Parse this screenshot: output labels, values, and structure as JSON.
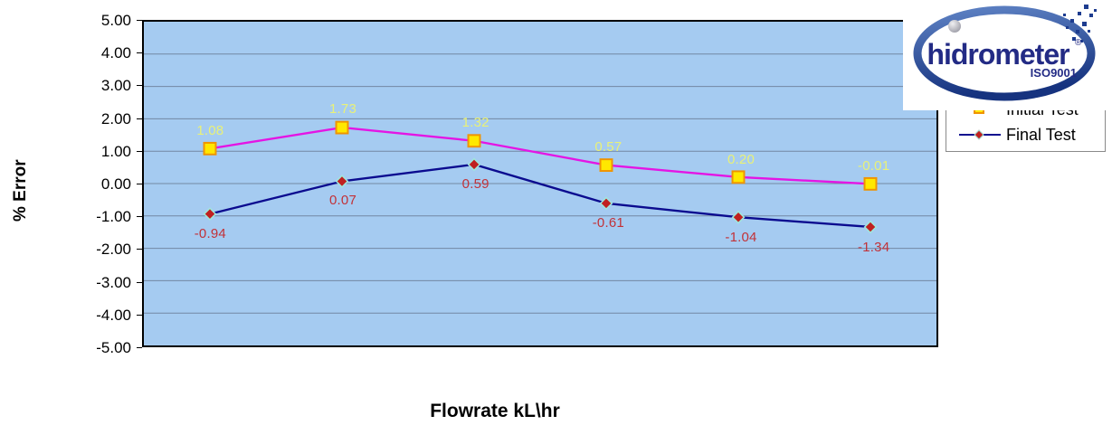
{
  "chart_data": {
    "type": "line",
    "x_count": 6,
    "x_tick_labels_visible": false,
    "title": "",
    "xlabel": "Flowrate kL\\hr",
    "ylabel": "% Error",
    "ylim": [
      -5,
      5
    ],
    "yticks": [
      "5.00",
      "4.00",
      "3.00",
      "2.00",
      "1.00",
      "0.00",
      "-1.00",
      "-2.00",
      "-3.00",
      "-4.00",
      "-5.00"
    ],
    "grid": true,
    "plot_bg": "#A5CBF1",
    "grid_color": "#7388A3",
    "axis_border_color": "#000000",
    "legend_position": "right",
    "series": [
      {
        "name": "Initial Test",
        "values": [
          1.08,
          1.73,
          1.32,
          0.57,
          0.2,
          -0.01
        ],
        "point_labels": [
          "1.08",
          "1.73",
          "1.32",
          "0.57",
          "0.20",
          "-0.01"
        ],
        "label_position": "above",
        "label_color": "#E9F178",
        "line_color": "#E415E4",
        "marker": "square",
        "marker_fill": "#FFE800",
        "marker_stroke": "#EF9400"
      },
      {
        "name": "Final Test",
        "values": [
          -0.94,
          0.07,
          0.59,
          -0.61,
          -1.04,
          -1.34
        ],
        "point_labels": [
          "-0.94",
          "0.07",
          "0.59",
          "-0.61",
          "-1.04",
          "-1.34"
        ],
        "label_position": "below",
        "label_color": "#C23238",
        "line_color": "#0B0B8F",
        "marker": "diamond",
        "marker_fill": "#C02020",
        "marker_stroke": "#9FE8DC"
      }
    ]
  },
  "legend": {
    "items": [
      {
        "label": "Initial Test"
      },
      {
        "label": "Final Test"
      }
    ]
  },
  "logo": {
    "brand": "hidrometer",
    "registered": "®",
    "cert": "ISO9001",
    "ring_color_top": "#5E82C4",
    "ring_color_bottom": "#16337F",
    "text_color": "#232B85"
  }
}
